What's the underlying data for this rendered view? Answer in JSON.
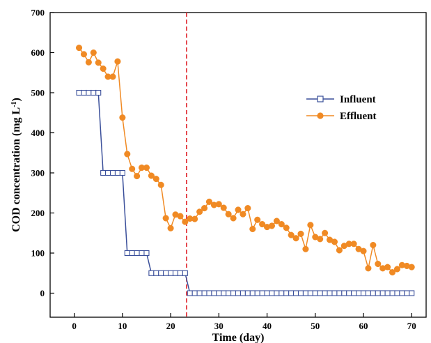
{
  "chart_data": {
    "type": "line",
    "xlabel": "Time (day)",
    "ylabel_main": "COD concentration (mg L",
    "ylabel_sup": "-1",
    "ylabel_tail": ")",
    "xlim": [
      -5,
      73
    ],
    "ylim": [
      -60,
      700
    ],
    "xticks": [
      0,
      10,
      20,
      30,
      40,
      50,
      60,
      70
    ],
    "yticks": [
      0,
      100,
      200,
      300,
      400,
      500,
      600,
      700
    ],
    "xtick_labels": [
      "0",
      "10",
      "20",
      "30",
      "40",
      "50",
      "60",
      "70"
    ],
    "ytick_labels": [
      "0",
      "100",
      "200",
      "300",
      "400",
      "500",
      "600",
      "700"
    ],
    "divider_x": 23.3,
    "legend_position": "top-right",
    "series": [
      {
        "name": "Influent",
        "color": "#3a4f9a",
        "marker": "open-square",
        "points": [
          [
            1,
            500
          ],
          [
            2,
            500
          ],
          [
            3,
            500
          ],
          [
            4,
            500
          ],
          [
            5,
            500
          ],
          [
            6,
            300
          ],
          [
            7,
            300
          ],
          [
            8,
            300
          ],
          [
            9,
            300
          ],
          [
            10,
            300
          ],
          [
            11,
            100
          ],
          [
            12,
            100
          ],
          [
            13,
            100
          ],
          [
            14,
            100
          ],
          [
            15,
            100
          ],
          [
            16,
            50
          ],
          [
            17,
            50
          ],
          [
            18,
            50
          ],
          [
            19,
            50
          ],
          [
            20,
            50
          ],
          [
            21,
            50
          ],
          [
            22,
            50
          ],
          [
            23,
            50
          ],
          [
            24,
            0
          ],
          [
            25,
            0
          ],
          [
            26,
            0
          ],
          [
            27,
            0
          ],
          [
            28,
            0
          ],
          [
            29,
            0
          ],
          [
            30,
            0
          ],
          [
            31,
            0
          ],
          [
            32,
            0
          ],
          [
            33,
            0
          ],
          [
            34,
            0
          ],
          [
            35,
            0
          ],
          [
            36,
            0
          ],
          [
            37,
            0
          ],
          [
            38,
            0
          ],
          [
            39,
            0
          ],
          [
            40,
            0
          ],
          [
            41,
            0
          ],
          [
            42,
            0
          ],
          [
            43,
            0
          ],
          [
            44,
            0
          ],
          [
            45,
            0
          ],
          [
            46,
            0
          ],
          [
            47,
            0
          ],
          [
            48,
            0
          ],
          [
            49,
            0
          ],
          [
            50,
            0
          ],
          [
            51,
            0
          ],
          [
            52,
            0
          ],
          [
            53,
            0
          ],
          [
            54,
            0
          ],
          [
            55,
            0
          ],
          [
            56,
            0
          ],
          [
            57,
            0
          ],
          [
            58,
            0
          ],
          [
            59,
            0
          ],
          [
            60,
            0
          ],
          [
            61,
            0
          ],
          [
            62,
            0
          ],
          [
            63,
            0
          ],
          [
            64,
            0
          ],
          [
            65,
            0
          ],
          [
            66,
            0
          ],
          [
            67,
            0
          ],
          [
            68,
            0
          ],
          [
            69,
            0
          ],
          [
            70,
            0
          ]
        ]
      },
      {
        "name": "Effluent",
        "color": "#f08a24",
        "marker": "filled-circle",
        "points": [
          [
            1,
            612
          ],
          [
            2,
            596
          ],
          [
            3,
            576
          ],
          [
            4,
            600
          ],
          [
            5,
            575
          ],
          [
            6,
            560
          ],
          [
            7,
            540
          ],
          [
            8,
            540
          ],
          [
            9,
            578
          ],
          [
            10,
            438
          ],
          [
            11,
            347
          ],
          [
            12,
            310
          ],
          [
            13,
            292
          ],
          [
            14,
            313
          ],
          [
            15,
            313
          ],
          [
            16,
            293
          ],
          [
            17,
            285
          ],
          [
            18,
            270
          ],
          [
            19,
            187
          ],
          [
            20,
            162
          ],
          [
            21,
            196
          ],
          [
            22,
            192
          ],
          [
            23,
            178
          ],
          [
            24,
            186
          ],
          [
            25,
            185
          ],
          [
            26,
            203
          ],
          [
            27,
            212
          ],
          [
            28,
            228
          ],
          [
            29,
            220
          ],
          [
            30,
            222
          ],
          [
            31,
            213
          ],
          [
            32,
            197
          ],
          [
            33,
            187
          ],
          [
            34,
            208
          ],
          [
            35,
            197
          ],
          [
            36,
            212
          ],
          [
            37,
            160
          ],
          [
            38,
            183
          ],
          [
            39,
            172
          ],
          [
            40,
            165
          ],
          [
            41,
            168
          ],
          [
            42,
            180
          ],
          [
            43,
            172
          ],
          [
            44,
            163
          ],
          [
            45,
            145
          ],
          [
            46,
            137
          ],
          [
            47,
            148
          ],
          [
            48,
            110
          ],
          [
            49,
            170
          ],
          [
            50,
            140
          ],
          [
            51,
            135
          ],
          [
            52,
            150
          ],
          [
            53,
            133
          ],
          [
            54,
            128
          ],
          [
            55,
            107
          ],
          [
            56,
            118
          ],
          [
            57,
            123
          ],
          [
            58,
            123
          ],
          [
            59,
            110
          ],
          [
            60,
            105
          ],
          [
            61,
            62
          ],
          [
            62,
            120
          ],
          [
            63,
            73
          ],
          [
            64,
            62
          ],
          [
            65,
            65
          ],
          [
            66,
            52
          ],
          [
            67,
            60
          ],
          [
            68,
            70
          ],
          [
            69,
            68
          ],
          [
            70,
            65
          ]
        ]
      }
    ]
  }
}
